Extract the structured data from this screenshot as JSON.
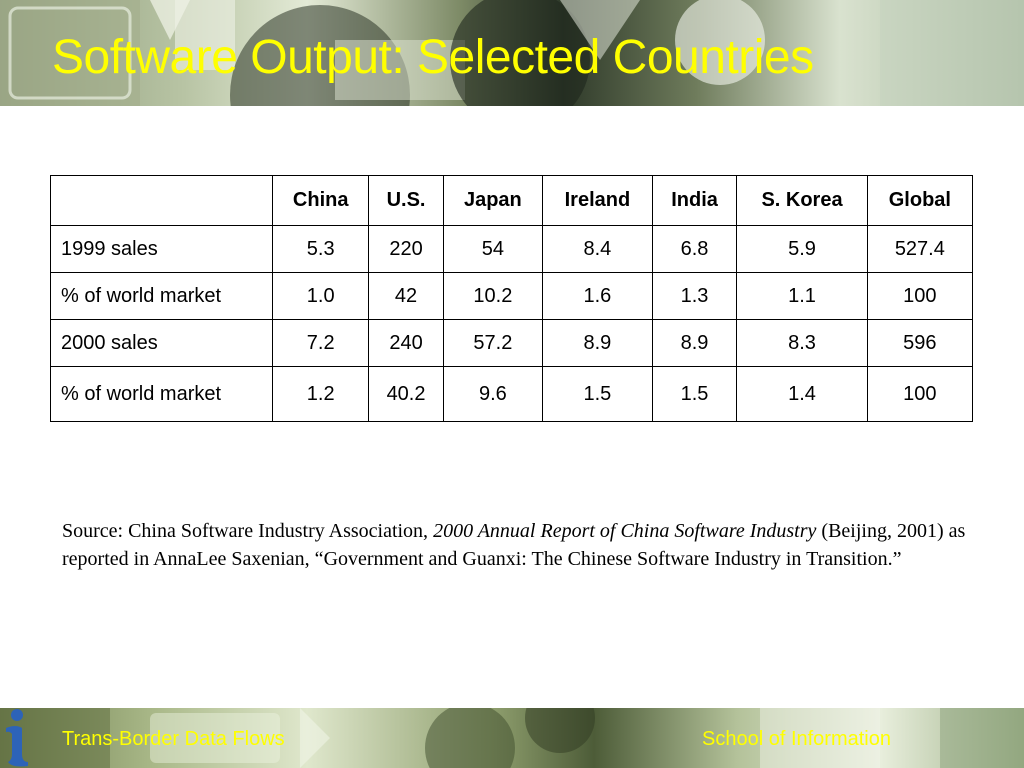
{
  "slide": {
    "title": "Software Output: Selected Countries"
  },
  "table": {
    "columns": [
      "",
      "China",
      "U.S.",
      "Japan",
      "Ireland",
      "India",
      "S. Korea",
      "Global"
    ],
    "rows": [
      [
        "1999 sales",
        "5.3",
        "220",
        "54",
        "8.4",
        "6.8",
        "5.9",
        "527.4"
      ],
      [
        "% of world market",
        "1.0",
        "42",
        "10.2",
        "1.6",
        "1.3",
        "1.1",
        "100"
      ],
      [
        "2000 sales",
        "7.2",
        "240",
        "57.2",
        "8.9",
        "8.9",
        "8.3",
        "596"
      ],
      [
        "% of world market",
        "1.2",
        "40.2",
        "9.6",
        "1.5",
        "1.5",
        "1.4",
        "100"
      ]
    ]
  },
  "source": {
    "prefix": "Source: China Software Industry Association, ",
    "report_title": "2000 Annual Report of China Software Industry",
    "suffix": " (Beijing, 2001) as reported in AnnaLee Saxenian, “Government and Guanxi: The Chinese Software Industry in Transition.”"
  },
  "footer": {
    "left": "Trans-Border Data Flows",
    "right": "School of Information",
    "logo_icon": "info-i-icon"
  },
  "colors": {
    "title": "#ffff00",
    "footer_text": "#ffff00",
    "logo": "#2d63b8"
  }
}
